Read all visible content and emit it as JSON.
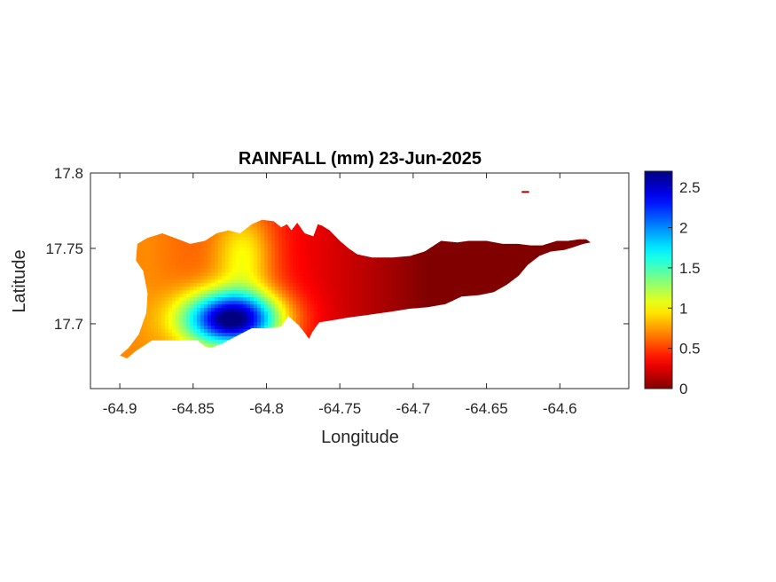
{
  "chart_data": {
    "type": "heatmap",
    "title": "RAINFALL (mm) 23-Jun-2025",
    "xlabel": "Longitude",
    "ylabel": "Latitude",
    "xlim": [
      -64.92,
      -64.553
    ],
    "ylim": [
      17.657,
      17.8
    ],
    "xticks": [
      -64.9,
      -64.85,
      -64.8,
      -64.75,
      -64.7,
      -64.65,
      -64.6
    ],
    "xtick_labels": [
      "-64.9",
      "-64.85",
      "-64.8",
      "-64.75",
      "-64.7",
      "-64.65",
      "-64.6"
    ],
    "yticks": [
      17.7,
      17.75,
      17.8
    ],
    "ytick_labels": [
      "17.7",
      "17.75",
      "17.8"
    ],
    "colorbar": {
      "colormap": "jet-reversed",
      "range": [
        0,
        2.7
      ],
      "ticks": [
        0,
        0.5,
        1,
        1.5,
        2,
        2.5
      ],
      "tick_labels": [
        "0",
        "0.5",
        "1",
        "1.5",
        "2",
        "2.5"
      ]
    },
    "grid": false,
    "outline": [
      [
        -64.9,
        17.679
      ],
      [
        -64.894,
        17.684
      ],
      [
        -64.887,
        17.693
      ],
      [
        -64.882,
        17.707
      ],
      [
        -64.881,
        17.72
      ],
      [
        -64.884,
        17.735
      ],
      [
        -64.889,
        17.742
      ],
      [
        -64.888,
        17.753
      ],
      [
        -64.881,
        17.757
      ],
      [
        -64.871,
        17.76
      ],
      [
        -64.86,
        17.756
      ],
      [
        -64.852,
        17.753
      ],
      [
        -64.842,
        17.755
      ],
      [
        -64.834,
        17.76
      ],
      [
        -64.826,
        17.762
      ],
      [
        -64.818,
        17.76
      ],
      [
        -64.81,
        17.766
      ],
      [
        -64.803,
        17.769
      ],
      [
        -64.795,
        17.768
      ],
      [
        -64.79,
        17.764
      ],
      [
        -64.786,
        17.766
      ],
      [
        -64.783,
        17.762
      ],
      [
        -64.779,
        17.767
      ],
      [
        -64.774,
        17.76
      ],
      [
        -64.768,
        17.758
      ],
      [
        -64.765,
        17.766
      ],
      [
        -64.762,
        17.765
      ],
      [
        -64.757,
        17.762
      ],
      [
        -64.75,
        17.755
      ],
      [
        -64.744,
        17.75
      ],
      [
        -64.738,
        17.746
      ],
      [
        -64.728,
        17.744
      ],
      [
        -64.714,
        17.744
      ],
      [
        -64.702,
        17.745
      ],
      [
        -64.692,
        17.748
      ],
      [
        -64.681,
        17.755
      ],
      [
        -64.67,
        17.754
      ],
      [
        -64.662,
        17.755
      ],
      [
        -64.65,
        17.755
      ],
      [
        -64.639,
        17.753
      ],
      [
        -64.629,
        17.753
      ],
      [
        -64.62,
        17.752
      ],
      [
        -64.612,
        17.752
      ],
      [
        -64.602,
        17.755
      ],
      [
        -64.594,
        17.755
      ],
      [
        -64.587,
        17.756
      ],
      [
        -64.582,
        17.756
      ],
      [
        -64.579,
        17.754
      ],
      [
        -64.584,
        17.753
      ],
      [
        -64.59,
        17.751
      ],
      [
        -64.597,
        17.749
      ],
      [
        -64.606,
        17.748
      ],
      [
        -64.614,
        17.745
      ],
      [
        -64.622,
        17.739
      ],
      [
        -64.628,
        17.732
      ],
      [
        -64.636,
        17.726
      ],
      [
        -64.645,
        17.721
      ],
      [
        -64.655,
        17.719
      ],
      [
        -64.667,
        17.718
      ],
      [
        -64.678,
        17.713
      ],
      [
        -64.69,
        17.711
      ],
      [
        -64.702,
        17.71
      ],
      [
        -64.715,
        17.708
      ],
      [
        -64.73,
        17.706
      ],
      [
        -64.745,
        17.704
      ],
      [
        -64.757,
        17.702
      ],
      [
        -64.764,
        17.701
      ],
      [
        -64.767,
        17.697
      ],
      [
        -64.769,
        17.694
      ],
      [
        -64.771,
        17.69
      ],
      [
        -64.774,
        17.694
      ],
      [
        -64.778,
        17.699
      ],
      [
        -64.785,
        17.705
      ],
      [
        -64.79,
        17.698
      ],
      [
        -64.8,
        17.697
      ],
      [
        -64.81,
        17.697
      ],
      [
        -64.82,
        17.692
      ],
      [
        -64.83,
        17.687
      ],
      [
        -64.838,
        17.684
      ],
      [
        -64.842,
        17.685
      ],
      [
        -64.847,
        17.689
      ],
      [
        -64.855,
        17.689
      ],
      [
        -64.866,
        17.689
      ],
      [
        -64.878,
        17.689
      ],
      [
        -64.889,
        17.682
      ],
      [
        -64.895,
        17.677
      ],
      [
        -64.9,
        17.679
      ]
    ],
    "islet": [
      [
        -64.626,
        17.788
      ],
      [
        -64.621,
        17.788
      ],
      [
        -64.621,
        17.787
      ],
      [
        -64.626,
        17.787
      ]
    ],
    "rainfall_field": {
      "peak": {
        "lon": -64.823,
        "lat": 17.703,
        "value": 2.7
      },
      "ridge_north": {
        "lon": -64.815,
        "lat": 17.745,
        "value": 1.05
      },
      "east_zero_longitude": -64.69,
      "west_edge_value": 0.7
    }
  }
}
